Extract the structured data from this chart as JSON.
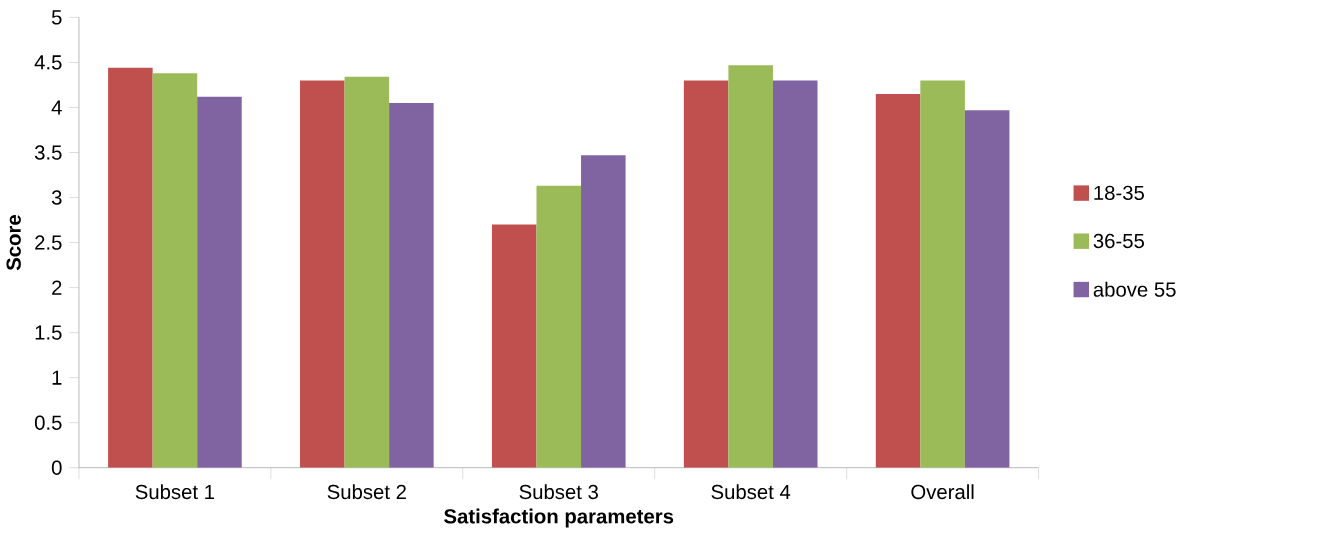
{
  "chart_data": {
    "type": "bar",
    "xlabel": "Satisfaction parameters",
    "ylabel": "Score",
    "categories": [
      "Subset 1",
      "Subset 2",
      "Subset 3",
      "Subset 4",
      "Overall"
    ],
    "series": [
      {
        "name": "18-35",
        "color": "#c0504d",
        "values": [
          4.44,
          4.3,
          2.7,
          4.3,
          4.15
        ]
      },
      {
        "name": "36-55",
        "color": "#9bbb59",
        "values": [
          4.38,
          4.34,
          3.13,
          4.47,
          4.3
        ]
      },
      {
        "name": "above 55",
        "color": "#8064a2",
        "values": [
          4.12,
          4.05,
          3.47,
          4.3,
          3.97
        ]
      }
    ],
    "ylim": [
      0,
      5
    ],
    "yticks": [
      0,
      0.5,
      1,
      1.5,
      2,
      2.5,
      3,
      3.5,
      4,
      4.5,
      5
    ],
    "grid": false,
    "legend": "right"
  }
}
